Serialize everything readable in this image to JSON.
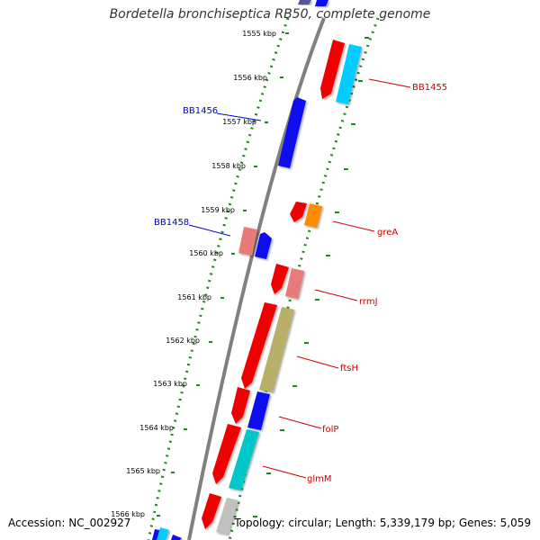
{
  "title": "Bordetella bronchiseptica RB50, complete genome",
  "footer": {
    "accession": "Accession: NC_002927",
    "topology": "Topology: circular; Length: 5,339,179 bp; Genes: 5,059"
  },
  "ticks": [
    {
      "label": "1555 kbp"
    },
    {
      "label": "1556 kbp"
    },
    {
      "label": "1557 kbp"
    },
    {
      "label": "1558 kbp"
    },
    {
      "label": "1559 kbp"
    },
    {
      "label": "1560 kbp"
    },
    {
      "label": "1561 kbp"
    },
    {
      "label": "1562 kbp"
    },
    {
      "label": "1563 kbp"
    },
    {
      "label": "1564 kbp"
    },
    {
      "label": "1565 kbp"
    },
    {
      "label": "1566 kbp"
    }
  ],
  "gene_labels": [
    {
      "text": "BB1455",
      "color": "#cc0000"
    },
    {
      "text": "BB1456",
      "color": "#0000cc"
    },
    {
      "text": "BB1458",
      "color": "#0000cc"
    },
    {
      "text": "greA",
      "color": "#cc0000"
    },
    {
      "text": "rrmJ",
      "color": "#cc0000"
    },
    {
      "text": "ftsH",
      "color": "#cc0000"
    },
    {
      "text": "folP",
      "color": "#cc0000"
    },
    {
      "text": "glmM",
      "color": "#cc0000"
    }
  ],
  "colors": {
    "red": "#ee0000",
    "cyan": "#00ccff",
    "blue": "#1010ee",
    "orange": "#ff8c00",
    "pink": "#e87a7a",
    "olive": "#b8b068",
    "teal": "#00c8c8",
    "gray": "#c0c0c0",
    "backbone": "#808080",
    "dots": "#1a8a1a"
  }
}
